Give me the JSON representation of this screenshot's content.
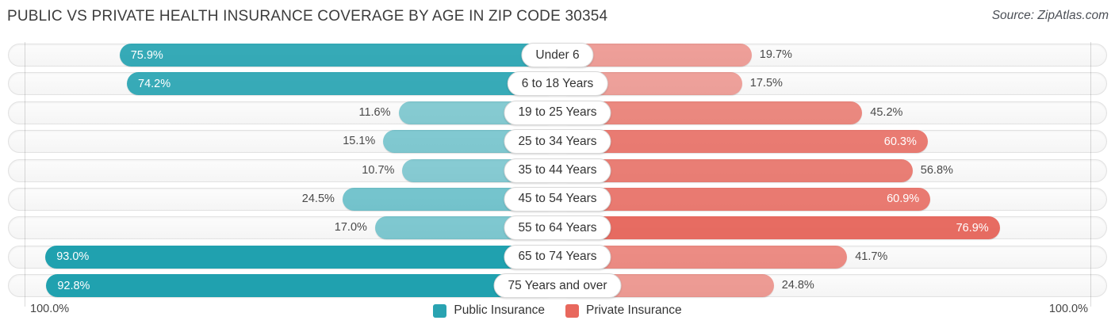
{
  "title": "PUBLIC VS PRIVATE HEALTH INSURANCE COVERAGE BY AGE IN ZIP CODE 30354",
  "source": "Source: ZipAtlas.com",
  "axis": {
    "left_label": "100.0%",
    "right_label": "100.0%",
    "max_percent": 100.0
  },
  "legend": {
    "public_label": "Public Insurance",
    "private_label": "Private Insurance",
    "public_color": "#29a3b1",
    "private_color": "#e8685d"
  },
  "chart_data": {
    "type": "bar",
    "orientation": "diverging-horizontal",
    "title": "Public vs Private Health Insurance Coverage by Age in Zip Code 30354",
    "categories": [
      "Under 6",
      "6 to 18 Years",
      "19 to 25 Years",
      "25 to 34 Years",
      "35 to 44 Years",
      "45 to 54 Years",
      "55 to 64 Years",
      "65 to 74 Years",
      "75 Years and over"
    ],
    "series": [
      {
        "name": "Public Insurance",
        "side": "left",
        "base_color_rgb": [
          23,
          157,
          172
        ],
        "values": [
          75.9,
          74.2,
          11.6,
          15.1,
          10.7,
          24.5,
          17.0,
          93.0,
          92.8
        ]
      },
      {
        "name": "Private Insurance",
        "side": "right",
        "base_color_rgb": [
          228,
          87,
          75
        ],
        "values": [
          19.7,
          17.5,
          45.2,
          60.3,
          56.8,
          60.9,
          76.9,
          41.7,
          24.8
        ]
      }
    ],
    "value_suffix": "%",
    "xlim": [
      0,
      100
    ],
    "grid": "edge-lines-at-100-percent",
    "legend_position": "bottom-center"
  }
}
